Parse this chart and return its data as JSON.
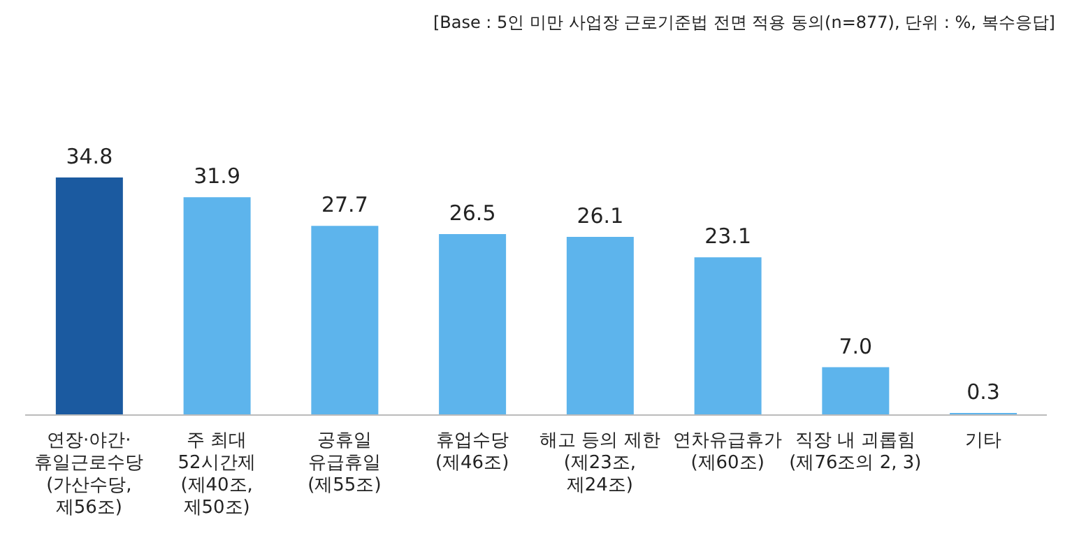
{
  "chart_data": {
    "type": "bar",
    "annotations": [
      "[Base : 5인 미만 사업장 근로기준법 전면 적용 동의(n=877), 단위 : %, 복수응답]"
    ],
    "categories": [
      "연장·야간·\n휴일근로수당\n(가산수당,\n제56조)",
      "주 최대\n52시간제\n(제40조,\n제50조)",
      "공휴일\n유급휴일\n(제55조)",
      "휴업수당\n(제46조)",
      "해고 등의 제한\n(제23조,\n제24조)",
      "연차유급휴가\n(제60조)",
      "직장 내 괴롭힘\n(제76조의 2, 3)",
      "기타"
    ],
    "values": [
      34.8,
      31.9,
      27.7,
      26.5,
      26.1,
      23.1,
      7.0,
      0.3
    ],
    "colors": [
      "#1b5aa0",
      "#5db4ec",
      "#5db4ec",
      "#5db4ec",
      "#5db4ec",
      "#5db4ec",
      "#5db4ec",
      "#5db4ec"
    ],
    "value_labels": [
      "34.8",
      "31.9",
      "27.7",
      "26.5",
      "26.1",
      "23.1",
      "7.0",
      "0.3"
    ],
    "grid": false
  }
}
